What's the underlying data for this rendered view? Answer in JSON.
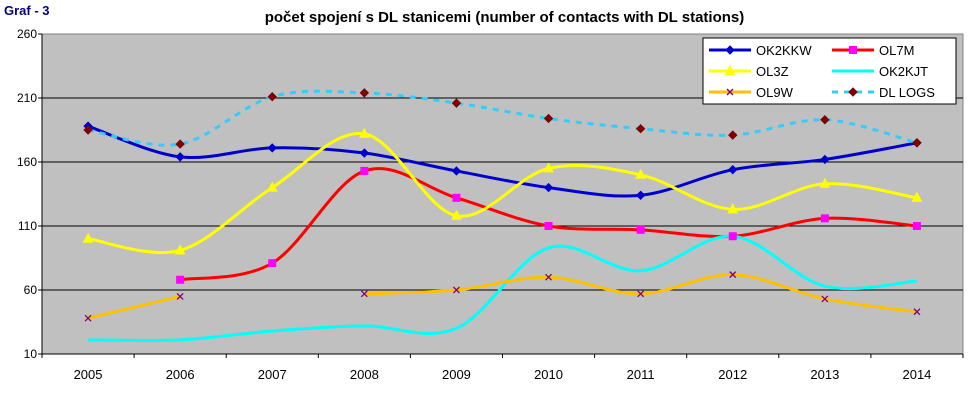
{
  "graf_label": "Graf - 3",
  "chart_data": {
    "type": "line",
    "title": "počet spojení s DL stanicemi (number of contacts with DL stations)",
    "xlabel": "",
    "ylabel": "",
    "categories": [
      "2005",
      "2006",
      "2007",
      "2008",
      "2009",
      "2010",
      "2011",
      "2012",
      "2013",
      "2014"
    ],
    "ylim": [
      10,
      260
    ],
    "yticks": [
      "10",
      "60",
      "110",
      "160",
      "210",
      "260"
    ],
    "grid": true,
    "legend": "top-right",
    "plot_background": "#c0c0c0",
    "series": [
      {
        "name": "OK2KKW",
        "color": "#0000cc",
        "marker": "diamond",
        "dashed": false,
        "values": [
          188,
          164,
          171,
          167,
          153,
          140,
          134,
          154,
          162,
          175
        ]
      },
      {
        "name": "OL7M",
        "color": "#ff0000",
        "marker_color": "#ff00ff",
        "marker": "square",
        "dashed": false,
        "values": [
          null,
          68,
          81,
          153,
          132,
          110,
          107,
          102,
          116,
          110
        ]
      },
      {
        "name": "OL3Z",
        "color": "#ffff00",
        "marker": "triangle",
        "dashed": false,
        "values": [
          100,
          91,
          140,
          182,
          118,
          155,
          150,
          123,
          143,
          132
        ]
      },
      {
        "name": "OK2KJT",
        "color": "#00ffff",
        "marker": "none",
        "dashed": false,
        "values": [
          21,
          21,
          28,
          32,
          30,
          93,
          75,
          102,
          63,
          67
        ]
      },
      {
        "name": "OL9W",
        "color": "#ffc000",
        "marker_color": "#800080",
        "marker": "x",
        "dashed": false,
        "values": [
          38,
          55,
          null,
          57,
          60,
          70,
          57,
          72,
          53,
          43
        ]
      },
      {
        "name": "DL LOGS",
        "color": "#33ccff",
        "marker_color": "#800000",
        "marker": "diamond",
        "dashed": true,
        "values": [
          185,
          174,
          211,
          214,
          206,
          194,
          186,
          181,
          193,
          175
        ]
      }
    ]
  }
}
